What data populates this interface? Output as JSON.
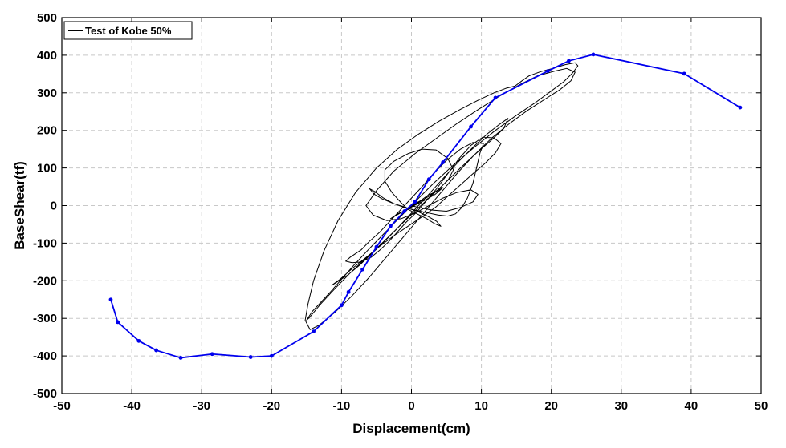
{
  "chart_data": {
    "type": "line",
    "title": "",
    "xlabel": "Displacement(cm)",
    "ylabel": "BaseShear(tf)",
    "xlim": [
      -50,
      50
    ],
    "ylim": [
      -500,
      500
    ],
    "xticks": [
      -50,
      -40,
      -30,
      -20,
      -10,
      0,
      10,
      20,
      30,
      40,
      50
    ],
    "yticks": [
      -500,
      -400,
      -300,
      -200,
      -100,
      0,
      100,
      200,
      300,
      400,
      500
    ],
    "xtick_labels": [
      "-50",
      "-40",
      "-30",
      "-20",
      "-10",
      "0",
      "10",
      "20",
      "30",
      "40",
      "50"
    ],
    "ytick_labels": [
      "-500",
      "-400",
      "-300",
      "-200",
      "-100",
      "0",
      "100",
      "200",
      "300",
      "400",
      "500"
    ],
    "grid": true,
    "legend_position": "top-left",
    "series": [
      {
        "name": "Test of Kobe 50%",
        "color": "#000000",
        "marker": "none",
        "points": [
          [
            0,
            0
          ],
          [
            1.2,
            12
          ],
          [
            2.4,
            28
          ],
          [
            3.6,
            38
          ],
          [
            4.5,
            48
          ],
          [
            3.4,
            30
          ],
          [
            2.0,
            15
          ],
          [
            0.6,
            2
          ],
          [
            -0.8,
            -12
          ],
          [
            -2.0,
            -22
          ],
          [
            -3.0,
            -35
          ],
          [
            -1.8,
            -22
          ],
          [
            -0.5,
            -8
          ],
          [
            1.0,
            8
          ],
          [
            2.5,
            25
          ],
          [
            4.0,
            45
          ],
          [
            5.3,
            70
          ],
          [
            6.0,
            95
          ],
          [
            5.2,
            125
          ],
          [
            3.5,
            148
          ],
          [
            1.5,
            150
          ],
          [
            -0.5,
            138
          ],
          [
            -2.5,
            118
          ],
          [
            -3.8,
            95
          ],
          [
            -3.8,
            65
          ],
          [
            -2.8,
            35
          ],
          [
            -1.5,
            8
          ],
          [
            -0.5,
            -10
          ],
          [
            0.8,
            -22
          ],
          [
            2.2,
            -35
          ],
          [
            3.3,
            -48
          ],
          [
            4.2,
            -55
          ],
          [
            3.6,
            -42
          ],
          [
            2.3,
            -28
          ],
          [
            0.8,
            -15
          ],
          [
            -0.8,
            -5
          ],
          [
            -2.5,
            5
          ],
          [
            -4.2,
            18
          ],
          [
            -5.3,
            30
          ],
          [
            -6.0,
            45
          ],
          [
            -5.3,
            38
          ],
          [
            -4.0,
            20
          ],
          [
            -2.5,
            5
          ],
          [
            -1.0,
            -5
          ],
          [
            0.5,
            -12
          ],
          [
            2.0,
            -18
          ],
          [
            3.8,
            -25
          ],
          [
            5.2,
            -28
          ],
          [
            6.3,
            -22
          ],
          [
            7.2,
            -5
          ],
          [
            8.0,
            20
          ],
          [
            8.8,
            60
          ],
          [
            9.3,
            100
          ],
          [
            9.8,
            140
          ],
          [
            10.3,
            165
          ],
          [
            8.8,
            168
          ],
          [
            7.0,
            150
          ],
          [
            5.0,
            120
          ],
          [
            3.0,
            82
          ],
          [
            1.5,
            50
          ],
          [
            0.0,
            20
          ],
          [
            -1.5,
            -10
          ],
          [
            -3.0,
            -40
          ],
          [
            -4.5,
            -70
          ],
          [
            -6.0,
            -95
          ],
          [
            -7.2,
            -118
          ],
          [
            -8.8,
            -138
          ],
          [
            -9.4,
            -148
          ],
          [
            -8.5,
            -152
          ],
          [
            -7.2,
            -150
          ],
          [
            -5.8,
            -138
          ],
          [
            -4.5,
            -118
          ],
          [
            -3.2,
            -95
          ],
          [
            -2.0,
            -70
          ],
          [
            -0.8,
            -45
          ],
          [
            0.6,
            -20
          ],
          [
            2.0,
            10
          ],
          [
            3.6,
            45
          ],
          [
            5.2,
            85
          ],
          [
            6.8,
            125
          ],
          [
            8.5,
            160
          ],
          [
            10.2,
            182
          ],
          [
            11.8,
            180
          ],
          [
            12.8,
            165
          ],
          [
            12.0,
            140
          ],
          [
            10.5,
            112
          ],
          [
            8.8,
            85
          ],
          [
            7.0,
            55
          ],
          [
            5.2,
            25
          ],
          [
            3.4,
            -5
          ],
          [
            1.5,
            -30
          ],
          [
            -0.5,
            -55
          ],
          [
            -2.5,
            -80
          ],
          [
            -4.5,
            -108
          ],
          [
            -6.5,
            -138
          ],
          [
            -8.5,
            -168
          ],
          [
            -10.2,
            -196
          ],
          [
            -11.4,
            -212
          ],
          [
            -10.8,
            -205
          ],
          [
            -9.2,
            -186
          ],
          [
            -7.5,
            -160
          ],
          [
            -5.8,
            -130
          ],
          [
            -4.0,
            -98
          ],
          [
            -2.2,
            -64
          ],
          [
            -0.4,
            -28
          ],
          [
            1.4,
            8
          ],
          [
            3.2,
            45
          ],
          [
            5.0,
            82
          ],
          [
            6.8,
            118
          ],
          [
            8.8,
            155
          ],
          [
            10.8,
            190
          ],
          [
            12.5,
            215
          ],
          [
            13.8,
            232
          ],
          [
            13.2,
            205
          ],
          [
            11.5,
            175
          ],
          [
            9.2,
            138
          ],
          [
            7.0,
            100
          ],
          [
            4.8,
            60
          ],
          [
            2.5,
            20
          ],
          [
            0.2,
            -20
          ],
          [
            -2.0,
            -60
          ],
          [
            -4.2,
            -100
          ],
          [
            -6.5,
            -140
          ],
          [
            -8.8,
            -180
          ],
          [
            -11.0,
            -222
          ],
          [
            -13.0,
            -262
          ],
          [
            -14.6,
            -298
          ],
          [
            -15.0,
            -305
          ],
          [
            -14.2,
            -282
          ],
          [
            -13.0,
            -258
          ],
          [
            -11.6,
            -230
          ],
          [
            -10.0,
            -196
          ],
          [
            -8.2,
            -158
          ],
          [
            -6.2,
            -118
          ],
          [
            -4.0,
            -76
          ],
          [
            -1.8,
            -34
          ],
          [
            0.6,
            12
          ],
          [
            3.2,
            60
          ],
          [
            6.0,
            108
          ],
          [
            9.0,
            155
          ],
          [
            12.0,
            200
          ],
          [
            15.0,
            240
          ],
          [
            17.8,
            275
          ],
          [
            20.0,
            305
          ],
          [
            21.8,
            330
          ],
          [
            23.0,
            352
          ],
          [
            23.8,
            372
          ],
          [
            23.4,
            380
          ],
          [
            22.0,
            375
          ],
          [
            20.2,
            365
          ],
          [
            18.4,
            356
          ],
          [
            16.8,
            345
          ],
          [
            15.8,
            332
          ],
          [
            14.8,
            318
          ],
          [
            13.5,
            312
          ],
          [
            11.8,
            300
          ],
          [
            9.5,
            280
          ],
          [
            7.0,
            256
          ],
          [
            4.0,
            225
          ],
          [
            1.0,
            190
          ],
          [
            -2.0,
            150
          ],
          [
            -5.0,
            100
          ],
          [
            -8.0,
            35
          ],
          [
            -10.5,
            -40
          ],
          [
            -12.5,
            -120
          ],
          [
            -14.0,
            -200
          ],
          [
            -14.8,
            -262
          ],
          [
            -15.2,
            -305
          ],
          [
            -14.5,
            -330
          ],
          [
            -13.2,
            -318
          ],
          [
            -11.0,
            -285
          ],
          [
            -8.5,
            -240
          ],
          [
            -6.0,
            -190
          ],
          [
            -3.5,
            -135
          ],
          [
            -1.0,
            -80
          ],
          [
            1.5,
            -25
          ],
          [
            4.0,
            30
          ],
          [
            6.5,
            85
          ],
          [
            9.0,
            135
          ],
          [
            11.5,
            180
          ],
          [
            14.0,
            218
          ],
          [
            16.5,
            252
          ],
          [
            19.0,
            282
          ],
          [
            21.2,
            308
          ],
          [
            22.8,
            332
          ],
          [
            23.4,
            355
          ],
          [
            22.2,
            365
          ],
          [
            20.5,
            358
          ],
          [
            18.0,
            345
          ],
          [
            15.5,
            322
          ],
          [
            12.5,
            290
          ],
          [
            9.5,
            255
          ],
          [
            6.5,
            218
          ],
          [
            3.5,
            178
          ],
          [
            0.5,
            138
          ],
          [
            -2.5,
            92
          ],
          [
            -5.0,
            40
          ],
          [
            -6.5,
            0
          ],
          [
            -5.5,
            -25
          ],
          [
            -3.5,
            -40
          ],
          [
            -1.5,
            -35
          ],
          [
            0.5,
            -20
          ],
          [
            2.5,
            0
          ],
          [
            4.5,
            20
          ],
          [
            6.5,
            35
          ],
          [
            8.5,
            42
          ],
          [
            9.5,
            30
          ],
          [
            8.8,
            10
          ],
          [
            7.0,
            -5
          ],
          [
            5.0,
            -15
          ],
          [
            3.0,
            -12
          ],
          [
            1.0,
            -5
          ],
          [
            0.0,
            0
          ]
        ]
      },
      {
        "name": "",
        "color": "#0000ee",
        "marker": "dot",
        "points": [
          [
            -43.0,
            -250
          ],
          [
            -42.0,
            -310
          ],
          [
            -39.0,
            -360
          ],
          [
            -36.5,
            -385
          ],
          [
            -33.0,
            -405
          ],
          [
            -28.5,
            -395
          ],
          [
            -23.0,
            -403
          ],
          [
            -20.0,
            -400
          ],
          [
            -14.0,
            -335
          ],
          [
            -10.0,
            -265
          ],
          [
            -9.0,
            -230
          ],
          [
            -7.0,
            -170
          ],
          [
            -5.0,
            -110
          ],
          [
            -3.0,
            -55
          ],
          [
            -1.0,
            -15
          ],
          [
            0.5,
            10
          ],
          [
            2.5,
            70
          ],
          [
            4.5,
            115
          ],
          [
            8.5,
            210
          ],
          [
            12.0,
            287
          ],
          [
            19.5,
            358
          ],
          [
            22.5,
            385
          ],
          [
            26.0,
            402
          ],
          [
            39.0,
            351
          ],
          [
            47.0,
            261
          ]
        ]
      }
    ]
  }
}
